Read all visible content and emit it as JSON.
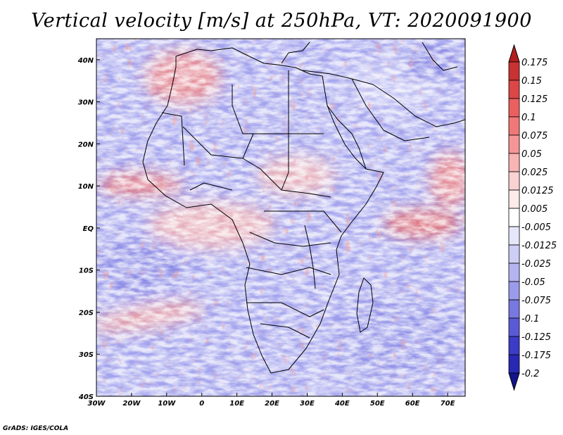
{
  "title": "Vertical velocity [m/s] at 250hPa, VT: 2020091900",
  "credit": "GrADS: IGES/COLA",
  "map": {
    "region": "Africa",
    "variable": "Vertical velocity",
    "units": "m/s",
    "level": "250hPa",
    "valid_time": "2020091900",
    "lon_range": [
      -30,
      75
    ],
    "lat_range": [
      -40,
      45
    ],
    "lon_ticks": [
      "30W",
      "20W",
      "10W",
      "0",
      "10E",
      "20E",
      "30E",
      "40E",
      "50E",
      "60E",
      "70E"
    ],
    "lat_ticks": [
      "40N",
      "30N",
      "20N",
      "10N",
      "EQ",
      "10S",
      "20S",
      "30S",
      "40S"
    ]
  },
  "colorbar": {
    "levels": [
      "0.175",
      "0.15",
      "0.125",
      "0.1",
      "0.075",
      "0.05",
      "0.025",
      "0.0125",
      "0.005",
      "-0.005",
      "-0.0125",
      "-0.025",
      "-0.05",
      "-0.075",
      "-0.1",
      "-0.125",
      "-0.175",
      "-0.2"
    ],
    "colors": [
      "#b41e1e",
      "#c83232",
      "#dc4646",
      "#eb5f5f",
      "#f07878",
      "#f59696",
      "#f8b4b4",
      "#fbd2d2",
      "#fdeaea",
      "#ffffff",
      "#e6e6fb",
      "#cdcdf5",
      "#b4b4f0",
      "#9b9beb",
      "#7878e1",
      "#5a5ad7",
      "#3c3cc8",
      "#2828b4",
      "#14148c"
    ]
  }
}
